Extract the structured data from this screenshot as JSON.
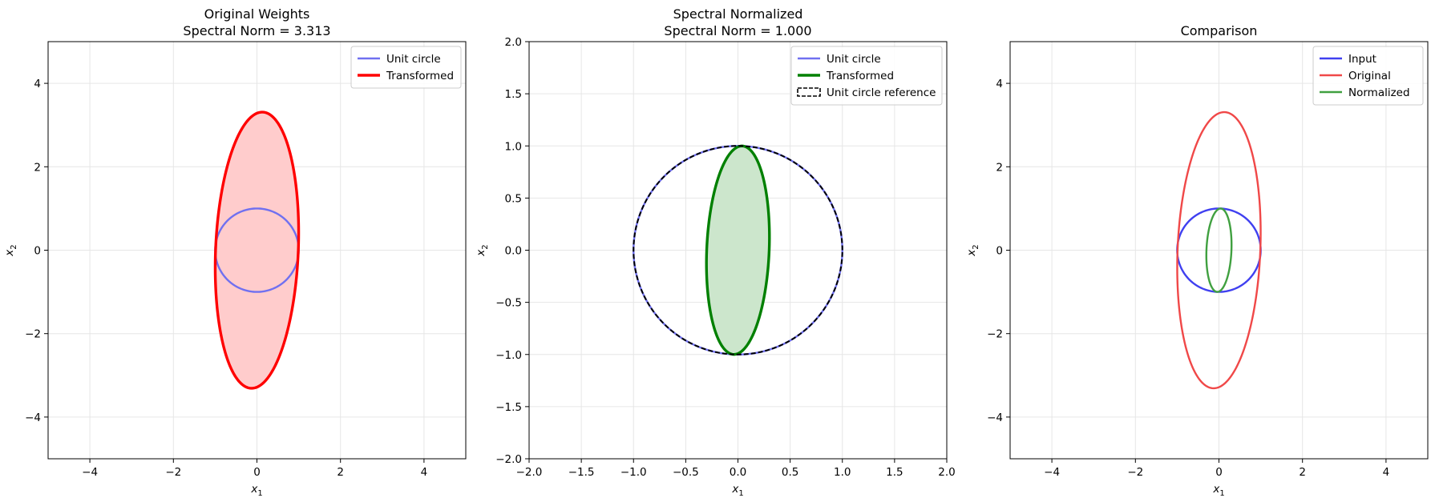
{
  "chart_data": [
    {
      "type": "line",
      "title_line1": "Original Weights",
      "title_line2": "Spectral Norm = 3.313",
      "xlabel": "x",
      "xlabel_sub": "1",
      "ylabel": "x",
      "ylabel_sub": "2",
      "xlim": [
        -5,
        5
      ],
      "ylim": [
        -5,
        5
      ],
      "xticks": [
        -4,
        -2,
        0,
        2,
        4
      ],
      "yticks": [
        -4,
        -2,
        0,
        2,
        4
      ],
      "xtick_labels": [
        "−4",
        "−2",
        "0",
        "2",
        "4"
      ],
      "ytick_labels": [
        "−4",
        "−2",
        "0",
        "2",
        "4"
      ],
      "grid": true,
      "legend_position": "top-right",
      "series": [
        {
          "name": "Unit circle",
          "kind": "ellipse",
          "color": "#7070f0",
          "width": 2.4,
          "params": {
            "a": 1.0,
            "b": 1.0,
            "angle_deg": 0
          }
        },
        {
          "name": "Transformed",
          "kind": "ellipse",
          "color": "#ff0000",
          "width": 3.4,
          "fill": "#ffcccc",
          "params": {
            "a": 3.313,
            "b": 0.99,
            "angle_deg": 87.6
          }
        }
      ]
    },
    {
      "type": "line",
      "title_line1": "Spectral Normalized",
      "title_line2": "Spectral Norm = 1.000",
      "xlabel": "x",
      "xlabel_sub": "1",
      "ylabel": "x",
      "ylabel_sub": "2",
      "xlim": [
        -2,
        2
      ],
      "ylim": [
        -2,
        2
      ],
      "xticks": [
        -2.0,
        -1.5,
        -1.0,
        -0.5,
        0.0,
        0.5,
        1.0,
        1.5,
        2.0
      ],
      "yticks": [
        -2.0,
        -1.5,
        -1.0,
        -0.5,
        0.0,
        0.5,
        1.0,
        1.5,
        2.0
      ],
      "xtick_labels": [
        "−2.0",
        "−1.5",
        "−1.0",
        "−0.5",
        "0.0",
        "0.5",
        "1.0",
        "1.5",
        "2.0"
      ],
      "ytick_labels": [
        "−2.0",
        "−1.5",
        "−1.0",
        "−0.5",
        "0.0",
        "0.5",
        "1.0",
        "1.5",
        "2.0"
      ],
      "grid": true,
      "legend_position": "top-right",
      "series": [
        {
          "name": "Unit circle",
          "kind": "ellipse",
          "color": "#7070f0",
          "width": 2.4,
          "params": {
            "a": 1.0,
            "b": 1.0,
            "angle_deg": 0
          }
        },
        {
          "name": "Transformed",
          "kind": "ellipse",
          "color": "#008000",
          "width": 3.4,
          "fill": "#cce6cc",
          "params": {
            "a": 1.0,
            "b": 0.299,
            "angle_deg": 87.6
          }
        },
        {
          "name": "Unit circle reference",
          "kind": "ellipse",
          "color": "#000000",
          "width": 2.0,
          "dashed": true,
          "legend_patch": true,
          "params": {
            "a": 1.0,
            "b": 1.0,
            "angle_deg": 0
          }
        }
      ]
    },
    {
      "type": "line",
      "title_line1": "Comparison",
      "title_line2": "",
      "xlabel": "x",
      "xlabel_sub": "1",
      "ylabel": "x",
      "ylabel_sub": "2",
      "xlim": [
        -5,
        5
      ],
      "ylim": [
        -5,
        5
      ],
      "xticks": [
        -4,
        -2,
        0,
        2,
        4
      ],
      "yticks": [
        -4,
        -2,
        0,
        2,
        4
      ],
      "xtick_labels": [
        "−4",
        "−2",
        "0",
        "2",
        "4"
      ],
      "ytick_labels": [
        "−4",
        "−2",
        "0",
        "2",
        "4"
      ],
      "grid": true,
      "legend_position": "top-right",
      "series": [
        {
          "name": "Input",
          "kind": "ellipse",
          "color": "#4040f0",
          "width": 2.4,
          "params": {
            "a": 1.0,
            "b": 1.0,
            "angle_deg": 0
          }
        },
        {
          "name": "Original",
          "kind": "ellipse",
          "color": "#f04848",
          "width": 2.4,
          "params": {
            "a": 3.313,
            "b": 0.99,
            "angle_deg": 87.6
          }
        },
        {
          "name": "Normalized",
          "kind": "ellipse",
          "color": "#40a040",
          "width": 2.4,
          "params": {
            "a": 1.0,
            "b": 0.299,
            "angle_deg": 87.6
          }
        }
      ]
    }
  ]
}
